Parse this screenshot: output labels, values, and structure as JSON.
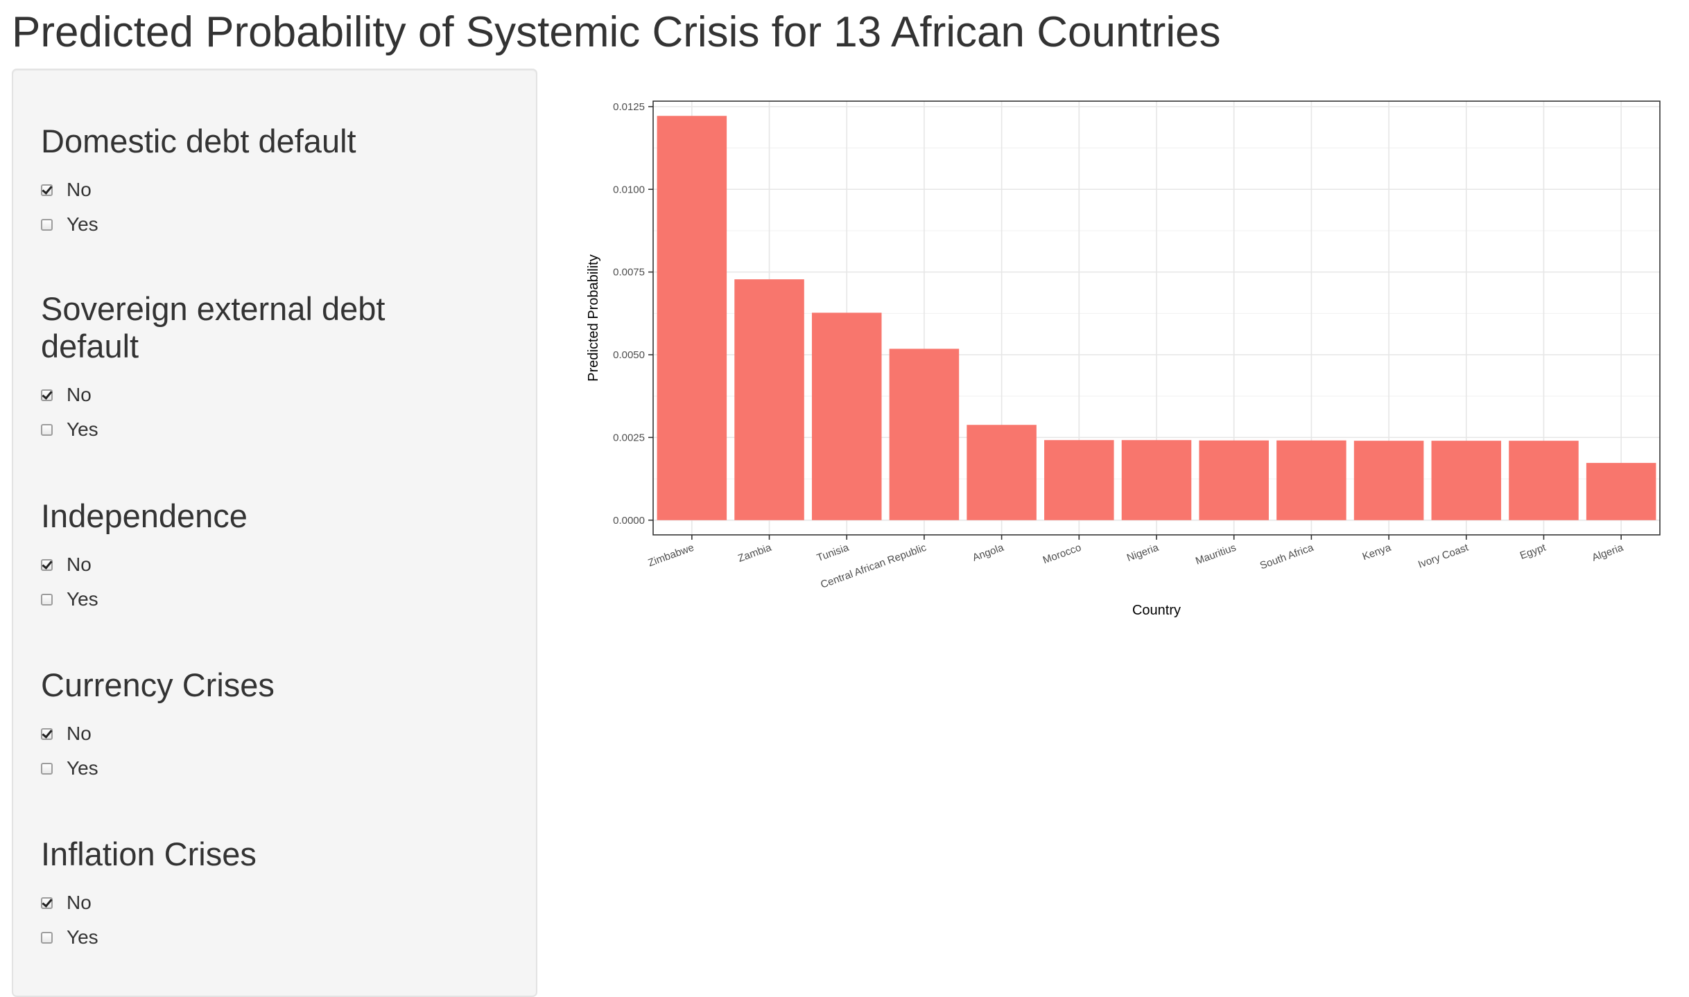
{
  "page": {
    "title": "Predicted Probability of Systemic Crisis for 13 African Countries"
  },
  "sidebar": {
    "sections": [
      {
        "title": "Domestic debt default",
        "options": [
          {
            "label": "No",
            "checked": true
          },
          {
            "label": "Yes",
            "checked": false
          }
        ]
      },
      {
        "title": "Sovereign external debt default",
        "options": [
          {
            "label": "No",
            "checked": true
          },
          {
            "label": "Yes",
            "checked": false
          }
        ]
      },
      {
        "title": "Independence",
        "options": [
          {
            "label": "No",
            "checked": true
          },
          {
            "label": "Yes",
            "checked": false
          }
        ]
      },
      {
        "title": "Currency Crises",
        "options": [
          {
            "label": "No",
            "checked": true
          },
          {
            "label": "Yes",
            "checked": false
          }
        ]
      },
      {
        "title": "Inflation Crises",
        "options": [
          {
            "label": "No",
            "checked": true
          },
          {
            "label": "Yes",
            "checked": false
          }
        ]
      }
    ]
  },
  "chart_data": {
    "type": "bar",
    "categories": [
      "Zimbabwe",
      "Zambia",
      "Tunisia",
      "Central African Republic",
      "Angola",
      "Morocco",
      "Nigeria",
      "Mauritius",
      "South Africa",
      "Kenya",
      "Ivory Coast",
      "Egypt",
      "Algeria"
    ],
    "values": [
      0.01222,
      0.00728,
      0.00627,
      0.00518,
      0.00288,
      0.00242,
      0.00242,
      0.00241,
      0.00241,
      0.0024,
      0.0024,
      0.0024,
      0.00173
    ],
    "xlabel": "Country",
    "ylabel": "Predicted Probability",
    "ylim": [
      -0.00055,
      0.0013
    ],
    "yticks": [
      "0.0000",
      "0.0025",
      "0.0050",
      "0.0075",
      "0.0100",
      "0.0125"
    ],
    "bar_color": "#F8766D",
    "grid": true,
    "legend": "none"
  }
}
